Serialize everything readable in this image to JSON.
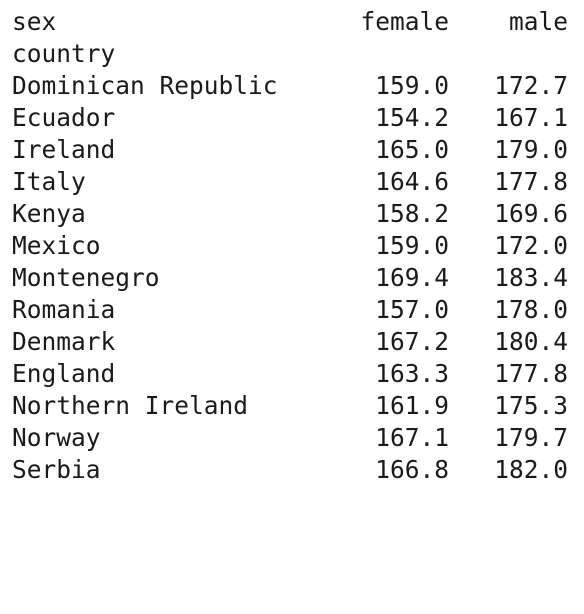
{
  "header": {
    "columns_name": "sex",
    "female": "female",
    "male": "male",
    "index_name": "country"
  },
  "rows": [
    {
      "country": "Dominican Republic",
      "female": "159.0",
      "male": "172.7"
    },
    {
      "country": "Ecuador",
      "female": "154.2",
      "male": "167.1"
    },
    {
      "country": "Ireland",
      "female": "165.0",
      "male": "179.0"
    },
    {
      "country": "Italy",
      "female": "164.6",
      "male": "177.8"
    },
    {
      "country": "Kenya",
      "female": "158.2",
      "male": "169.6"
    },
    {
      "country": "Mexico",
      "female": "159.0",
      "male": "172.0"
    },
    {
      "country": "Montenegro",
      "female": "169.4",
      "male": "183.4"
    },
    {
      "country": "Romania",
      "female": "157.0",
      "male": "178.0"
    },
    {
      "country": "Denmark",
      "female": "167.2",
      "male": "180.4"
    },
    {
      "country": "England",
      "female": "163.3",
      "male": "177.8"
    },
    {
      "country": "Northern Ireland",
      "female": "161.9",
      "male": "175.3"
    },
    {
      "country": "Norway",
      "female": "167.1",
      "male": "179.7"
    },
    {
      "country": "Serbia",
      "female": "166.8",
      "male": "182.0"
    }
  ]
}
